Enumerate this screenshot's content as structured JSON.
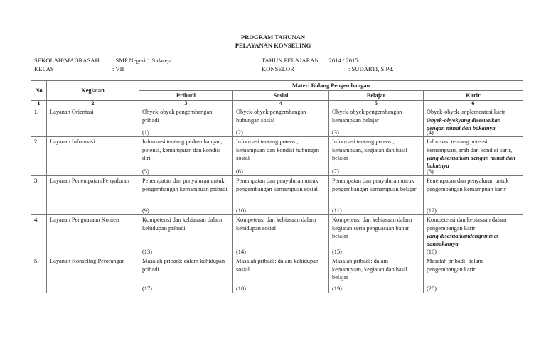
{
  "title": [
    "PROGRAM TAHUNAN",
    "PELAYANAN KONSELING"
  ],
  "info": {
    "sekolah_label": "SEKOLAH/MADRASAH",
    "sekolah_value": ": SMP Negeri 1 Sidareja",
    "kelas_label": "KELAS",
    "kelas_value": ": VII",
    "tahun_label": "TAHUN PELAJARAN",
    "tahun_value": ": 2014 / 2015",
    "konselor_label": "KONSELOR",
    "konselor_value": ": SUDARTI, S.Pd."
  },
  "table": {
    "headers": {
      "no": "No",
      "kegiatan": "Kegiatan",
      "materi": "Materi Bidang Pengembangan",
      "pribadi": "Pribadi",
      "sosial": "Sosial",
      "belajar": "Belajar",
      "karir": "Karir"
    },
    "col_numbers": [
      "1",
      "2",
      "3",
      "4",
      "5",
      "6"
    ],
    "rows": [
      {
        "no": "1.",
        "kegiatan": "Layanan Orientasi",
        "cells": [
          {
            "text": "Obyek-obyek pengembangan pribadi",
            "num": "(1)"
          },
          {
            "text": "Obyek-obyek pengembangan hubungan sosial",
            "num": "(2)"
          },
          {
            "text": "Obyek-obyek pengembangan kemampuan belajar",
            "num": "(3)"
          },
          {
            "text": "Obyek-obyek implementasi karir",
            "bold": "Obyek-obyekyang disesuaikan dengan minat dan bakatnya",
            "num": "(4)"
          }
        ]
      },
      {
        "no": "2.",
        "kegiatan": "Layanan Informasi",
        "cells": [
          {
            "text": "Informasi tentang perkembangan, potensi, kemampuan dan kondisi diri",
            "num": "(5)"
          },
          {
            "text": "Informasi tentang potensi, kemampuan dan kondisi hubungan sosial",
            "num": "(6)"
          },
          {
            "text": "Informasi tentang potensi, kemampuan, kegiatan dan hasil belajar",
            "num": "(7)"
          },
          {
            "text": "Informasi tentang potensi, kemampuan, arah dan kondisi karir,",
            "bold": "yang disesuaikan dengan minat dan bakatnya",
            "num": "(8)"
          }
        ]
      },
      {
        "no": "3.",
        "kegiatan": "Layanan Penempatan/Penyaluran",
        "cells": [
          {
            "text": "Penempatan dan penyaluran untuk pengembangan kemampuan pribadi",
            "num": "(9)"
          },
          {
            "text": "Penempatan dan penyaluran untuk pengembangan kemampuan sosial",
            "num": "(10)"
          },
          {
            "text": "Penempatan dan penyaluran untuk pengembangan kemampuan belajar",
            "num": "(11)"
          },
          {
            "text": "Penempatan dan penyaluran untuk pengembangan kemampuan karir",
            "num": "(12)"
          }
        ]
      },
      {
        "no": "4.",
        "kegiatan": "Layanan Penguasaan Konten",
        "cells": [
          {
            "text": "Kompetensi dan kebiasaan dalam kehidupan pribadi",
            "num": "(13)"
          },
          {
            "text": "Kompetensi dan kebiasaan dalam kehidupan sosial",
            "num": "(14)"
          },
          {
            "text": "Kompetensi dan kebiasaan dalam kegiatan serta penguasaan bahan belajar",
            "num": "(15)"
          },
          {
            "text": "Kompetensi dan kebiasaan dalam pengembangan karir",
            "bold": "yang disesuaikandengnminat danbakatnya",
            "num": "(16)"
          }
        ]
      },
      {
        "no": "5.",
        "kegiatan": "Layanan Konseling Perorangan",
        "cells": [
          {
            "text": "Masalah pribadi: dalam kehidupan pribadi",
            "num": "(17)"
          },
          {
            "text": "Masalah pribadi: dalam kehidupan sosial",
            "num": "(18)"
          },
          {
            "text": "Masalah pribadi: dalam kemampuan, kegiatan dan hasil belajar",
            "num": "(19)"
          },
          {
            "text": "Masalah pribadi: dalam pengembangan karir",
            "num": "(20)"
          }
        ]
      }
    ]
  }
}
